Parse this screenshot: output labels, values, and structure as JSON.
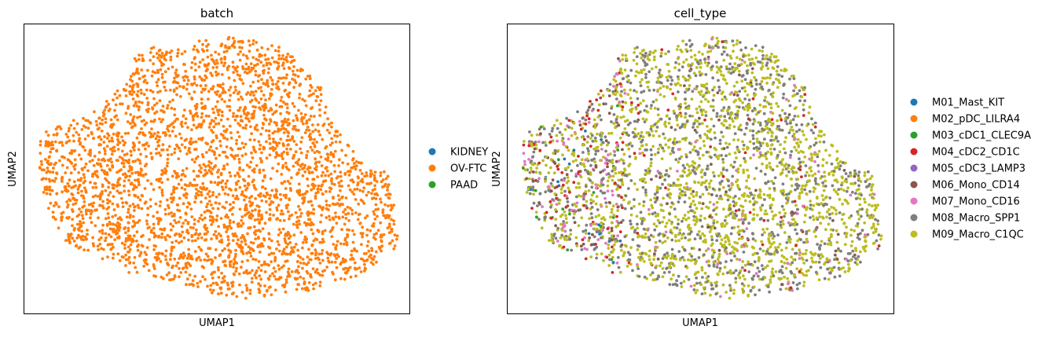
{
  "chart_data": [
    {
      "type": "scatter",
      "title": "batch",
      "xlabel": "UMAP1",
      "ylabel": "UMAP2",
      "grid": false,
      "legend": {
        "placement": "right",
        "entries": [
          {
            "label": "KIDNEY",
            "color": "#1f77b4"
          },
          {
            "label": "OV-FTC",
            "color": "#ff7f0e"
          },
          {
            "label": "PAAD",
            "color": "#2ca02c"
          }
        ]
      },
      "series": [
        {
          "label": "KIDNEY",
          "color": "#1f77b4",
          "count": 0
        },
        {
          "label": "OV-FTC",
          "color": "#ff7f0e",
          "count": 3200
        },
        {
          "label": "PAAD",
          "color": "#2ca02c",
          "count": 0
        }
      ]
    },
    {
      "type": "scatter",
      "title": "cell_type",
      "xlabel": "UMAP1",
      "ylabel": "UMAP2",
      "grid": false,
      "legend": {
        "placement": "right",
        "entries": [
          {
            "label": "M01_Mast_KIT",
            "color": "#1f77b4"
          },
          {
            "label": "M02_pDC_LILRA4",
            "color": "#ff7f0e"
          },
          {
            "label": "M03_cDC1_CLEC9A",
            "color": "#2ca02c"
          },
          {
            "label": "M04_cDC2_CD1C",
            "color": "#d62728"
          },
          {
            "label": "M05_cDC3_LAMP3",
            "color": "#9467bd"
          },
          {
            "label": "M06_Mono_CD14",
            "color": "#8c564b"
          },
          {
            "label": "M07_Mono_CD16",
            "color": "#e377c2"
          },
          {
            "label": "M08_Macro_SPP1",
            "color": "#7f7f7f"
          },
          {
            "label": "M09_Macro_C1QC",
            "color": "#bcbd22"
          }
        ]
      }
    }
  ]
}
